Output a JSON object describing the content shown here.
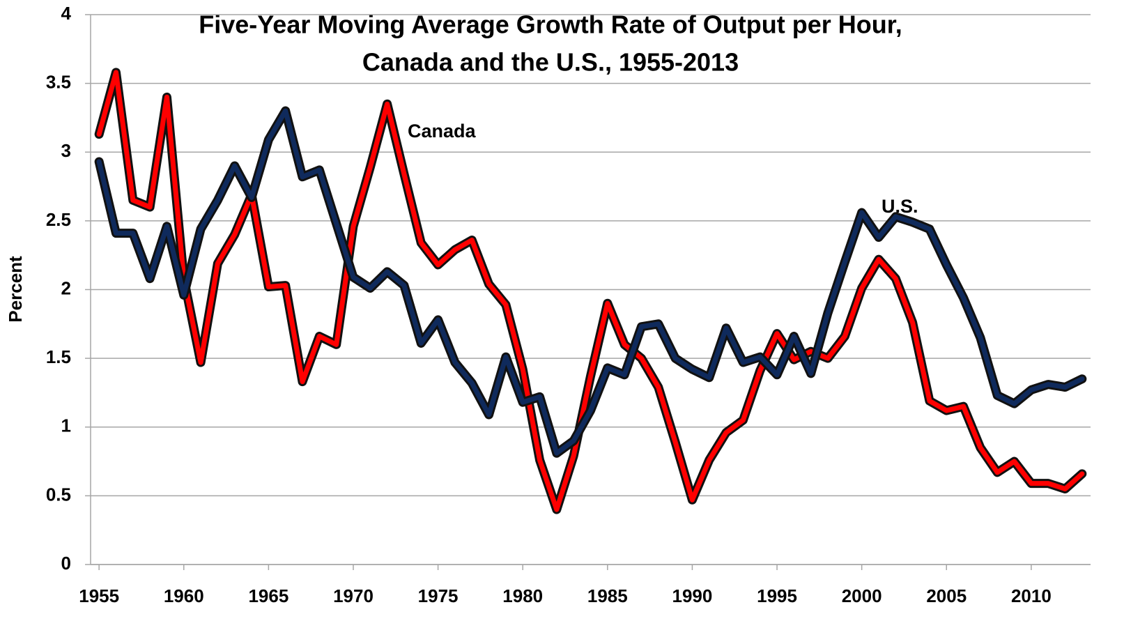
{
  "chart_data": {
    "type": "line",
    "title": "Five-Year Moving Average Growth Rate of Output per Hour,",
    "subtitle": "Canada and the U.S., 1955-2013",
    "y_label": "Percent",
    "x": [
      1955,
      1956,
      1957,
      1958,
      1959,
      1960,
      1961,
      1962,
      1963,
      1964,
      1965,
      1966,
      1967,
      1968,
      1969,
      1970,
      1971,
      1972,
      1973,
      1974,
      1975,
      1976,
      1977,
      1978,
      1979,
      1980,
      1981,
      1982,
      1983,
      1984,
      1985,
      1986,
      1987,
      1988,
      1989,
      1990,
      1991,
      1992,
      1993,
      1994,
      1995,
      1996,
      1997,
      1998,
      1999,
      2000,
      2001,
      2002,
      2003,
      2004,
      2005,
      2006,
      2007,
      2008,
      2009,
      2010,
      2011,
      2012,
      2013
    ],
    "series": [
      {
        "name": "Canada",
        "color": "#ff0000",
        "values": [
          3.13,
          3.58,
          2.65,
          2.6,
          3.4,
          2.08,
          1.47,
          2.19,
          2.4,
          2.69,
          2.02,
          2.03,
          1.33,
          1.66,
          1.6,
          2.46,
          2.89,
          3.35,
          2.84,
          2.34,
          2.18,
          2.29,
          2.36,
          2.04,
          1.89,
          1.42,
          0.76,
          0.4,
          0.79,
          1.37,
          1.9,
          1.6,
          1.5,
          1.29,
          0.89,
          0.47,
          0.76,
          0.96,
          1.05,
          1.41,
          1.68,
          1.49,
          1.55,
          1.5,
          1.66,
          2.01,
          2.22,
          2.08,
          1.76,
          1.19,
          1.12,
          1.15,
          0.85,
          0.67,
          0.75,
          0.59,
          0.59,
          0.55,
          0.66
        ]
      },
      {
        "name": "U.S.",
        "color": "#0f2a5c",
        "values": [
          2.93,
          2.41,
          2.41,
          2.08,
          2.46,
          1.96,
          2.44,
          2.65,
          2.9,
          2.67,
          3.09,
          3.3,
          2.82,
          2.87,
          2.48,
          2.09,
          2.01,
          2.13,
          2.03,
          1.61,
          1.78,
          1.47,
          1.32,
          1.09,
          1.51,
          1.18,
          1.22,
          0.81,
          0.9,
          1.12,
          1.43,
          1.38,
          1.73,
          1.75,
          1.5,
          1.42,
          1.36,
          1.72,
          1.47,
          1.51,
          1.38,
          1.66,
          1.39,
          1.83,
          2.2,
          2.56,
          2.38,
          2.53,
          2.49,
          2.44,
          2.18,
          1.94,
          1.65,
          1.23,
          1.17,
          1.27,
          1.31,
          1.29,
          1.35
        ]
      }
    ],
    "annotations": [
      "Canada",
      "U.S."
    ],
    "xlim": [
      1954.5,
      2013.5
    ],
    "xticks": [
      1955,
      1960,
      1965,
      1970,
      1975,
      1980,
      1985,
      1990,
      1995,
      2000,
      2005,
      2010
    ],
    "ylim": [
      0,
      4
    ],
    "yticks": [
      0,
      0.5,
      1,
      1.5,
      2,
      2.5,
      3,
      3.5,
      4
    ],
    "grid": true
  }
}
